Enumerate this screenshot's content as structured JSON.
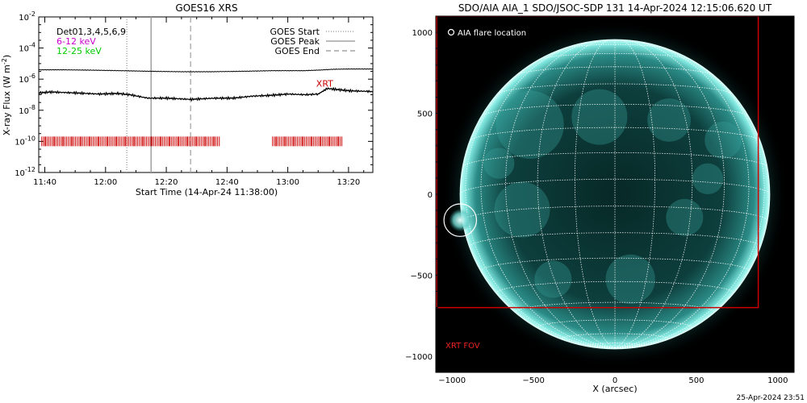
{
  "chart_data": [
    {
      "type": "line",
      "title": "GOES16 XRS",
      "xlabel": "Start Time (14-Apr-24 11:38:00)",
      "ylabel": "X-ray Flux (W m",
      "ylabel_sup": "-2",
      "ylabel_close": ")",
      "y_scale": "log",
      "ylim": [
        1e-12,
        0.01
      ],
      "xlim": [
        "11:38",
        "13:28"
      ],
      "x_ticks": [
        "11:40",
        "12:00",
        "12:20",
        "12:40",
        "13:00",
        "13:20"
      ],
      "y_ticks": [
        {
          "value": 0.01,
          "label": "10",
          "exp": "-2"
        },
        {
          "value": 0.0001,
          "label": "10",
          "exp": "-4"
        },
        {
          "value": 1e-06,
          "label": "10",
          "exp": "-6"
        },
        {
          "value": 1e-08,
          "label": "10",
          "exp": "-8"
        },
        {
          "value": 1e-10,
          "label": "10",
          "exp": "-10"
        },
        {
          "value": 1e-12,
          "label": "10",
          "exp": "-12"
        }
      ],
      "legend_left": [
        {
          "text": "Det01,3,4,5,6,9",
          "color": "#000000"
        },
        {
          "text": "6-12 keV",
          "color": "#cc00cc"
        },
        {
          "text": "12-25 keV",
          "color": "#00cc00"
        }
      ],
      "legend_right": [
        {
          "text": "GOES Start",
          "style": "dotted"
        },
        {
          "text": "GOES Peak",
          "style": "solid"
        },
        {
          "text": "GOES End",
          "style": "dashed"
        }
      ],
      "annotation": {
        "text": "XRT",
        "color": "#cc0000",
        "time": "13:12",
        "flux": 2e-07
      },
      "series": [
        {
          "color": "#000000",
          "times": [
            "11:38",
            "11:45",
            "11:55",
            "12:05",
            "12:15",
            "12:25",
            "12:35",
            "12:45",
            "12:55",
            "13:05",
            "13:10",
            "13:15",
            "13:20",
            "13:28"
          ],
          "values": [
            4e-06,
            4e-06,
            3.8e-06,
            3.5e-06,
            3.2e-06,
            3e-06,
            3e-06,
            3.2e-06,
            3.5e-06,
            3.5e-06,
            3.8e-06,
            4.3e-06,
            4.5e-06,
            4.5e-06
          ]
        },
        {
          "color": "#000000",
          "times": [
            "11:38",
            "11:42",
            "11:50",
            "11:58",
            "12:04",
            "12:08",
            "12:14",
            "12:20",
            "12:28",
            "12:36",
            "12:42",
            "12:48",
            "12:54",
            "13:00",
            "13:06",
            "13:10",
            "13:13",
            "13:16",
            "13:20",
            "13:28"
          ],
          "values": [
            1.3e-07,
            1.5e-07,
            1.3e-07,
            1.1e-07,
            1.2e-07,
            1e-07,
            6e-08,
            6e-08,
            5e-08,
            6e-08,
            6e-08,
            8e-08,
            9e-08,
            1.1e-07,
            1e-07,
            1.1e-07,
            2.5e-07,
            2.2e-07,
            1.8e-07,
            1.6e-07
          ]
        }
      ],
      "vertical_markers": [
        {
          "time": "12:07",
          "style": "dotted",
          "color": "#909090"
        },
        {
          "time": "12:15",
          "style": "solid",
          "color": "#a0a0a0"
        },
        {
          "time": "12:28",
          "style": "dashed",
          "color": "#a0a0a0"
        }
      ],
      "xrt_observation_intervals": [
        {
          "start": "11:39",
          "end": "12:38",
          "color": "#cc0000",
          "flux": 1e-10
        },
        {
          "start": "12:55",
          "end": "13:18",
          "color": "#cc0000",
          "flux": 1e-10
        }
      ]
    },
    {
      "type": "image",
      "title": "SDO/AIA AIA_1 SDO/JSOC-SDP 131 14-Apr-2024 12:15:06.620 UT",
      "xlabel": "X (arcsec)",
      "ylabel": "",
      "xlim": [
        -1100,
        1100
      ],
      "ylim": [
        -1100,
        1100
      ],
      "x_ticks": [
        {
          "value": -1000,
          "label": "−1000"
        },
        {
          "value": -500,
          "label": "−500"
        },
        {
          "value": 0,
          "label": "0"
        },
        {
          "value": 500,
          "label": "500"
        },
        {
          "value": 1000,
          "label": "1000"
        }
      ],
      "y_ticks": [
        {
          "value": 1000,
          "label": "1000"
        },
        {
          "value": 500,
          "label": "500"
        },
        {
          "value": 0,
          "label": "0"
        },
        {
          "value": -500,
          "label": "−500"
        },
        {
          "value": -1000,
          "label": "−1000"
        }
      ],
      "sun_center": [
        0,
        0
      ],
      "solar_radius_arcsec": 950,
      "legend": {
        "text": "AIA flare location",
        "color": "#ffffff"
      },
      "flare_location": {
        "x": -950,
        "y": -160,
        "radius": 100
      },
      "xrt_fov": {
        "x_min": -1100,
        "x_max": 880,
        "y_min": -700,
        "y_max": 1100,
        "label": "XRT FOV",
        "color": "#cc0000"
      },
      "colors": {
        "background": "#000000",
        "disk": "#0a3b3a",
        "limb": "#9ff7f0",
        "grid": "#ffffff"
      }
    }
  ],
  "footer": {
    "timestamp": "25-Apr-2024 23:51"
  }
}
